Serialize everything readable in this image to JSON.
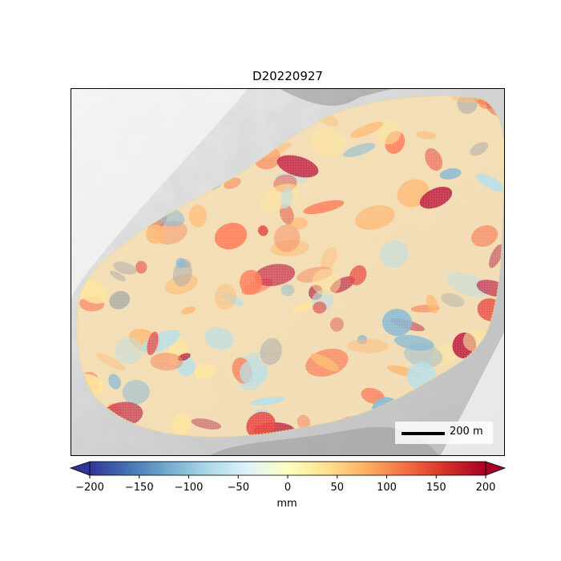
{
  "map": {
    "title": "D20220927",
    "scalebar_label": "200 m"
  },
  "colorbar": {
    "colormap": "RdYlBu_r",
    "min": -200,
    "max": 200,
    "extend": "both",
    "ticks": [
      "−200",
      "−150",
      "−100",
      "−50",
      "0",
      "50",
      "100",
      "150",
      "200"
    ],
    "label": "mm",
    "stops": [
      "#313695",
      "#4575b4",
      "#74add1",
      "#abd9e9",
      "#e0f3f8",
      "#ffffbf",
      "#fee090",
      "#fdae61",
      "#f46d43",
      "#d73027",
      "#a50026"
    ]
  }
}
